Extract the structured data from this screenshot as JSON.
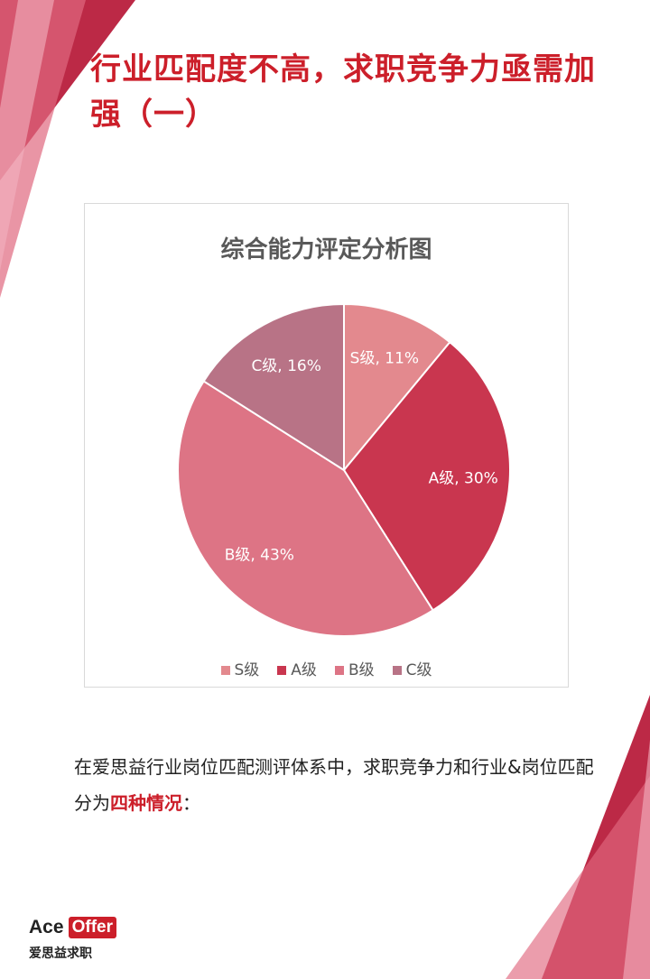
{
  "heading": "行业匹配度不高，求职竞争力亟需加强（一）",
  "description": {
    "part1": "在爱思益行业岗位匹配测评体系中，求职竞争力和行业&岗位匹配分为",
    "highlight": "四种情况",
    "part2": "："
  },
  "logo": {
    "ace": "Ace",
    "offer": "Offer",
    "subtitle": "爱思益求职"
  },
  "chart_data": {
    "type": "pie",
    "title": "综合能力评定分析图",
    "legend_position": "bottom",
    "slices": [
      {
        "label": "S级",
        "value": 11,
        "color": "#e3898e",
        "data_label": "S级, 11%"
      },
      {
        "label": "A级",
        "value": 30,
        "color": "#c9364f",
        "data_label": "A级, 30%"
      },
      {
        "label": "B级",
        "value": 43,
        "color": "#dd7485",
        "data_label": "B级, 43%"
      },
      {
        "label": "C级",
        "value": 16,
        "color": "#b87386",
        "data_label": "C级, 16%"
      }
    ]
  }
}
